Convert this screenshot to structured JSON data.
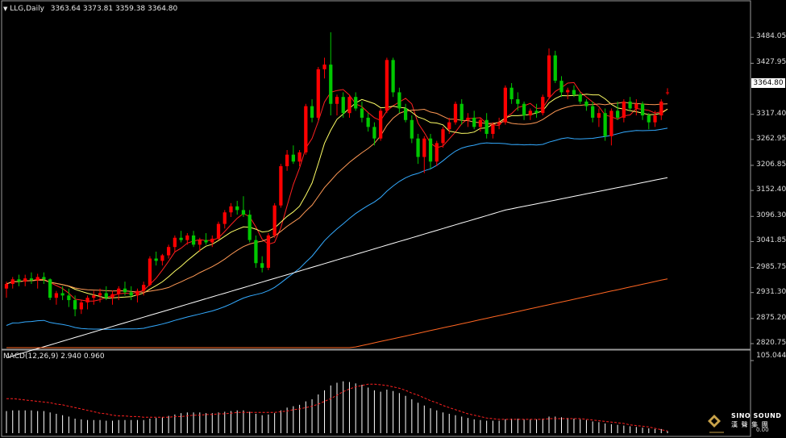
{
  "header": {
    "symbol": "LLG,Daily",
    "ohlc": "3363.64 3373.81 3359.38 3364.80"
  },
  "price_badge": "3364.80",
  "macd_label": "MACD(12,26,9) 2.940 0.960",
  "macd_scale": {
    "top": "105.044",
    "bottom": "0.00"
  },
  "logo": {
    "name": "SINO SOUND",
    "sub": "漢 聲 集 團"
  },
  "colors": {
    "background": "#000000",
    "up_candle": "#ff0000",
    "down_candle": "#00c800",
    "ma5": "#ff2020",
    "ma10": "#ffff66",
    "ma20": "#ff9955",
    "ma60": "#33aaff",
    "ma120": "#ffffff",
    "ma250": "#ff6622",
    "macd_hist": "#ffffff",
    "macd_signal": "#ff2020"
  },
  "chart_data": {
    "type": "candlestick",
    "ylim": [
      2812,
      3530
    ],
    "yticks": [
      {
        "label": "3484.05",
        "value": 3484.05
      },
      {
        "label": "3427.95",
        "value": 3427.95
      },
      {
        "label": "3317.40",
        "value": 3317.4
      },
      {
        "label": "3262.95",
        "value": 3262.95
      },
      {
        "label": "3206.85",
        "value": 3206.85
      },
      {
        "label": "3152.40",
        "value": 3152.4
      },
      {
        "label": "3096.30",
        "value": 3096.3
      },
      {
        "label": "3041.85",
        "value": 3041.85
      },
      {
        "label": "2985.75",
        "value": 2985.75
      },
      {
        "label": "2931.30",
        "value": 2931.3
      },
      {
        "label": "2875.20",
        "value": 2875.2
      },
      {
        "label": "2820.75",
        "value": 2820.75
      }
    ],
    "candles": [
      [
        2940,
        2955,
        2920,
        2950
      ],
      [
        2950,
        2965,
        2940,
        2960
      ],
      [
        2960,
        2970,
        2945,
        2955
      ],
      [
        2955,
        2970,
        2945,
        2962
      ],
      [
        2962,
        2975,
        2950,
        2958
      ],
      [
        2958,
        2972,
        2940,
        2965
      ],
      [
        2965,
        2975,
        2950,
        2960
      ],
      [
        2960,
        2962,
        2915,
        2920
      ],
      [
        2920,
        2935,
        2905,
        2930
      ],
      [
        2930,
        2945,
        2915,
        2925
      ],
      [
        2925,
        2940,
        2900,
        2915
      ],
      [
        2915,
        2925,
        2880,
        2895
      ],
      [
        2895,
        2915,
        2885,
        2910
      ],
      [
        2910,
        2925,
        2895,
        2920
      ],
      [
        2920,
        2935,
        2905,
        2925
      ],
      [
        2925,
        2940,
        2910,
        2930
      ],
      [
        2930,
        2945,
        2915,
        2920
      ],
      [
        2920,
        2935,
        2905,
        2928
      ],
      [
        2928,
        2945,
        2915,
        2940
      ],
      [
        2940,
        2955,
        2925,
        2932
      ],
      [
        2932,
        2945,
        2915,
        2925
      ],
      [
        2925,
        2940,
        2910,
        2935
      ],
      [
        2935,
        2955,
        2925,
        2948
      ],
      [
        2948,
        3010,
        2945,
        3005
      ],
      [
        3005,
        3020,
        2990,
        3000
      ],
      [
        3000,
        3015,
        2990,
        3012
      ],
      [
        3012,
        3035,
        3005,
        3030
      ],
      [
        3030,
        3055,
        3020,
        3050
      ],
      [
        3050,
        3065,
        3040,
        3045
      ],
      [
        3045,
        3060,
        3035,
        3055
      ],
      [
        3055,
        3065,
        3030,
        3035
      ],
      [
        3035,
        3050,
        3020,
        3045
      ],
      [
        3045,
        3060,
        3035,
        3040
      ],
      [
        3040,
        3055,
        3030,
        3048
      ],
      [
        3048,
        3085,
        3045,
        3080
      ],
      [
        3080,
        3110,
        3070,
        3105
      ],
      [
        3105,
        3125,
        3095,
        3118
      ],
      [
        3118,
        3130,
        3100,
        3110
      ],
      [
        3110,
        3140,
        3095,
        3100
      ],
      [
        3100,
        3110,
        3040,
        3045
      ],
      [
        3045,
        3055,
        2985,
        2995
      ],
      [
        2995,
        3010,
        2975,
        2985
      ],
      [
        2985,
        3060,
        2980,
        3055
      ],
      [
        3055,
        3125,
        3050,
        3120
      ],
      [
        3120,
        3210,
        3115,
        3205
      ],
      [
        3205,
        3240,
        3195,
        3230
      ],
      [
        3230,
        3250,
        3210,
        3215
      ],
      [
        3215,
        3240,
        3205,
        3235
      ],
      [
        3235,
        3340,
        3230,
        3335
      ],
      [
        3335,
        3350,
        3300,
        3310
      ],
      [
        3310,
        3420,
        3305,
        3415
      ],
      [
        3415,
        3440,
        3395,
        3425
      ],
      [
        3425,
        3495,
        3315,
        3340
      ],
      [
        3340,
        3360,
        3315,
        3355
      ],
      [
        3355,
        3365,
        3310,
        3320
      ],
      [
        3320,
        3360,
        3310,
        3355
      ],
      [
        3355,
        3365,
        3325,
        3330
      ],
      [
        3330,
        3345,
        3300,
        3310
      ],
      [
        3310,
        3320,
        3280,
        3290
      ],
      [
        3290,
        3300,
        3250,
        3265
      ],
      [
        3265,
        3330,
        3260,
        3325
      ],
      [
        3325,
        3440,
        3320,
        3435
      ],
      [
        3435,
        3440,
        3355,
        3365
      ],
      [
        3365,
        3375,
        3320,
        3330
      ],
      [
        3330,
        3340,
        3300,
        3305
      ],
      [
        3305,
        3315,
        3255,
        3265
      ],
      [
        3265,
        3275,
        3210,
        3225
      ],
      [
        3225,
        3270,
        3190,
        3265
      ],
      [
        3265,
        3275,
        3200,
        3215
      ],
      [
        3215,
        3260,
        3205,
        3255
      ],
      [
        3255,
        3290,
        3245,
        3285
      ],
      [
        3285,
        3310,
        3275,
        3300
      ],
      [
        3300,
        3345,
        3295,
        3340
      ],
      [
        3340,
        3350,
        3295,
        3305
      ],
      [
        3305,
        3320,
        3290,
        3310
      ],
      [
        3310,
        3325,
        3285,
        3290
      ],
      [
        3290,
        3310,
        3280,
        3305
      ],
      [
        3305,
        3320,
        3265,
        3275
      ],
      [
        3275,
        3300,
        3265,
        3295
      ],
      [
        3295,
        3310,
        3285,
        3300
      ],
      [
        3300,
        3380,
        3295,
        3375
      ],
      [
        3375,
        3385,
        3340,
        3350
      ],
      [
        3350,
        3365,
        3325,
        3340
      ],
      [
        3340,
        3345,
        3305,
        3315
      ],
      [
        3315,
        3330,
        3305,
        3325
      ],
      [
        3325,
        3340,
        3310,
        3320
      ],
      [
        3320,
        3360,
        3315,
        3355
      ],
      [
        3355,
        3460,
        3350,
        3445
      ],
      [
        3445,
        3455,
        3385,
        3390
      ],
      [
        3390,
        3400,
        3355,
        3365
      ],
      [
        3365,
        3375,
        3350,
        3370
      ],
      [
        3370,
        3380,
        3355,
        3360
      ],
      [
        3360,
        3365,
        3340,
        3345
      ],
      [
        3345,
        3350,
        3325,
        3335
      ],
      [
        3335,
        3345,
        3300,
        3310
      ],
      [
        3310,
        3330,
        3290,
        3320
      ],
      [
        3320,
        3330,
        3260,
        3270
      ],
      [
        3270,
        3330,
        3250,
        3325
      ],
      [
        3325,
        3345,
        3305,
        3310
      ],
      [
        3310,
        3350,
        3300,
        3345
      ],
      [
        3345,
        3355,
        3325,
        3330
      ],
      [
        3330,
        3350,
        3315,
        3340
      ],
      [
        3340,
        3345,
        3305,
        3315
      ],
      [
        3315,
        3320,
        3285,
        3300
      ],
      [
        3300,
        3325,
        3290,
        3315
      ],
      [
        3315,
        3350,
        3305,
        3345
      ],
      [
        3363.64,
        3373.81,
        3359.38,
        3364.8
      ]
    ],
    "macd_hist": [
      32,
      33,
      33,
      33,
      33,
      32,
      32,
      30,
      28,
      26,
      24,
      21,
      20,
      19,
      19,
      19,
      18,
      18,
      19,
      19,
      19,
      19,
      19,
      21,
      22,
      23,
      25,
      27,
      29,
      30,
      30,
      30,
      29,
      29,
      30,
      31,
      32,
      33,
      33,
      31,
      28,
      26,
      27,
      29,
      33,
      37,
      39,
      41,
      46,
      49,
      56,
      62,
      69,
      73,
      75,
      74,
      72,
      70,
      66,
      62,
      60,
      63,
      61,
      58,
      54,
      49,
      44,
      40,
      36,
      33,
      30,
      28,
      26,
      24,
      22,
      20,
      19,
      18,
      18,
      18,
      20,
      21,
      21,
      20,
      20,
      20,
      21,
      24,
      24,
      23,
      22,
      21,
      20,
      19,
      17,
      16,
      14,
      13,
      12,
      11,
      10,
      9,
      8,
      7,
      6,
      6,
      3
    ],
    "macd_signal": [
      50,
      50,
      49,
      48,
      47,
      46,
      45,
      44,
      42,
      41,
      39,
      37,
      35,
      33,
      31,
      29,
      28,
      26,
      25,
      25,
      24,
      24,
      23,
      23,
      23,
      23,
      23,
      24,
      24,
      25,
      26,
      26,
      27,
      27,
      28,
      28,
      29,
      30,
      30,
      30,
      30,
      30,
      30,
      30,
      31,
      32,
      34,
      35,
      37,
      39,
      42,
      46,
      50,
      55,
      60,
      64,
      67,
      69,
      71,
      71,
      70,
      69,
      67,
      65,
      62,
      58,
      55,
      51,
      47,
      44,
      40,
      37,
      34,
      31,
      28,
      26,
      24,
      22,
      21,
      20,
      20,
      20,
      20,
      20,
      20,
      20,
      20,
      21,
      21,
      21,
      21,
      21,
      21,
      20,
      19,
      18,
      17,
      16,
      15,
      14,
      12,
      11,
      10,
      9,
      7,
      5,
      3
    ],
    "macd_ylim": [
      0,
      105.044
    ]
  }
}
